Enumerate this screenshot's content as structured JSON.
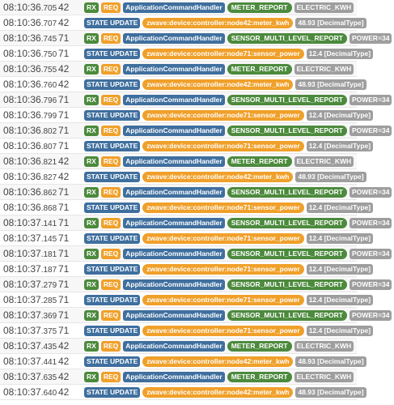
{
  "colors": {
    "blue": "#3f6f9e",
    "green": "#4c8a3d",
    "orange": "#f0a02a",
    "gray": "#9e9e9e"
  },
  "rows": [
    {
      "time": "08:10:36",
      "ms": ".705",
      "node": "42",
      "tags": [
        {
          "text": "RX",
          "color": "green",
          "pill": false
        },
        {
          "text": "REQ",
          "color": "orange",
          "pill": false
        },
        {
          "text": "ApplicationCommandHandler",
          "color": "blue",
          "pill": false
        },
        {
          "text": "METER_REPORT",
          "color": "green",
          "pill": true
        },
        {
          "text": "ELECTRIC_KWH",
          "color": "gray",
          "pill": false
        }
      ]
    },
    {
      "time": "08:10:36",
      "ms": ".707",
      "node": "42",
      "tags": [
        {
          "text": "STATE UPDATE",
          "color": "blue",
          "pill": false
        },
        {
          "text": "zwave:device:controller:node42:meter_kwh",
          "color": "orange",
          "pill": true
        },
        {
          "text": "48.93 [DecimalType]",
          "color": "gray",
          "pill": false
        }
      ]
    },
    {
      "time": "08:10:36",
      "ms": ".745",
      "node": "71",
      "tags": [
        {
          "text": "RX",
          "color": "green",
          "pill": false
        },
        {
          "text": "REQ",
          "color": "orange",
          "pill": false
        },
        {
          "text": "ApplicationCommandHandler",
          "color": "blue",
          "pill": false
        },
        {
          "text": "SENSOR_MULTI_LEVEL_REPORT",
          "color": "green",
          "pill": true
        },
        {
          "text": "POWER=34",
          "color": "gray",
          "pill": false
        }
      ]
    },
    {
      "time": "08:10:36",
      "ms": ".750",
      "node": "71",
      "tags": [
        {
          "text": "STATE UPDATE",
          "color": "blue",
          "pill": false
        },
        {
          "text": "zwave:device:controller:node71:sensor_power",
          "color": "orange",
          "pill": true
        },
        {
          "text": "12.4 [DecimalType]",
          "color": "gray",
          "pill": false
        }
      ]
    },
    {
      "time": "08:10:36",
      "ms": ".755",
      "node": "42",
      "tags": [
        {
          "text": "RX",
          "color": "green",
          "pill": false
        },
        {
          "text": "REQ",
          "color": "orange",
          "pill": false
        },
        {
          "text": "ApplicationCommandHandler",
          "color": "blue",
          "pill": false
        },
        {
          "text": "METER_REPORT",
          "color": "green",
          "pill": true
        },
        {
          "text": "ELECTRIC_KWH",
          "color": "gray",
          "pill": false
        }
      ]
    },
    {
      "time": "08:10:36",
      "ms": ".760",
      "node": "42",
      "tags": [
        {
          "text": "STATE UPDATE",
          "color": "blue",
          "pill": false
        },
        {
          "text": "zwave:device:controller:node42:meter_kwh",
          "color": "orange",
          "pill": true
        },
        {
          "text": "48.93 [DecimalType]",
          "color": "gray",
          "pill": false
        }
      ]
    },
    {
      "time": "08:10:36",
      "ms": ".796",
      "node": "71",
      "tags": [
        {
          "text": "RX",
          "color": "green",
          "pill": false
        },
        {
          "text": "REQ",
          "color": "orange",
          "pill": false
        },
        {
          "text": "ApplicationCommandHandler",
          "color": "blue",
          "pill": false
        },
        {
          "text": "SENSOR_MULTI_LEVEL_REPORT",
          "color": "green",
          "pill": true
        },
        {
          "text": "POWER=34",
          "color": "gray",
          "pill": false
        }
      ]
    },
    {
      "time": "08:10:36",
      "ms": ".799",
      "node": "71",
      "tags": [
        {
          "text": "STATE UPDATE",
          "color": "blue",
          "pill": false
        },
        {
          "text": "zwave:device:controller:node71:sensor_power",
          "color": "orange",
          "pill": true
        },
        {
          "text": "12.4 [DecimalType]",
          "color": "gray",
          "pill": false
        }
      ]
    },
    {
      "time": "08:10:36",
      "ms": ".802",
      "node": "71",
      "tags": [
        {
          "text": "RX",
          "color": "green",
          "pill": false
        },
        {
          "text": "REQ",
          "color": "orange",
          "pill": false
        },
        {
          "text": "ApplicationCommandHandler",
          "color": "blue",
          "pill": false
        },
        {
          "text": "SENSOR_MULTI_LEVEL_REPORT",
          "color": "green",
          "pill": true
        },
        {
          "text": "POWER=34",
          "color": "gray",
          "pill": false
        }
      ]
    },
    {
      "time": "08:10:36",
      "ms": ".807",
      "node": "71",
      "tags": [
        {
          "text": "STATE UPDATE",
          "color": "blue",
          "pill": false
        },
        {
          "text": "zwave:device:controller:node71:sensor_power",
          "color": "orange",
          "pill": true
        },
        {
          "text": "12.4 [DecimalType]",
          "color": "gray",
          "pill": false
        }
      ]
    },
    {
      "time": "08:10:36",
      "ms": ".821",
      "node": "42",
      "tags": [
        {
          "text": "RX",
          "color": "green",
          "pill": false
        },
        {
          "text": "REQ",
          "color": "orange",
          "pill": false
        },
        {
          "text": "ApplicationCommandHandler",
          "color": "blue",
          "pill": false
        },
        {
          "text": "METER_REPORT",
          "color": "green",
          "pill": true
        },
        {
          "text": "ELECTRIC_KWH",
          "color": "gray",
          "pill": false
        }
      ]
    },
    {
      "time": "08:10:36",
      "ms": ".827",
      "node": "42",
      "tags": [
        {
          "text": "STATE UPDATE",
          "color": "blue",
          "pill": false
        },
        {
          "text": "zwave:device:controller:node42:meter_kwh",
          "color": "orange",
          "pill": true
        },
        {
          "text": "48.93 [DecimalType]",
          "color": "gray",
          "pill": false
        }
      ]
    },
    {
      "time": "08:10:36",
      "ms": ".862",
      "node": "71",
      "tags": [
        {
          "text": "RX",
          "color": "green",
          "pill": false
        },
        {
          "text": "REQ",
          "color": "orange",
          "pill": false
        },
        {
          "text": "ApplicationCommandHandler",
          "color": "blue",
          "pill": false
        },
        {
          "text": "SENSOR_MULTI_LEVEL_REPORT",
          "color": "green",
          "pill": true
        },
        {
          "text": "POWER=34",
          "color": "gray",
          "pill": false
        }
      ]
    },
    {
      "time": "08:10:36",
      "ms": ".868",
      "node": "71",
      "tags": [
        {
          "text": "STATE UPDATE",
          "color": "blue",
          "pill": false
        },
        {
          "text": "zwave:device:controller:node71:sensor_power",
          "color": "orange",
          "pill": true
        },
        {
          "text": "12.4 [DecimalType]",
          "color": "gray",
          "pill": false
        }
      ]
    },
    {
      "time": "08:10:37",
      "ms": ".141",
      "node": "71",
      "tags": [
        {
          "text": "RX",
          "color": "green",
          "pill": false
        },
        {
          "text": "REQ",
          "color": "orange",
          "pill": false
        },
        {
          "text": "ApplicationCommandHandler",
          "color": "blue",
          "pill": false
        },
        {
          "text": "SENSOR_MULTI_LEVEL_REPORT",
          "color": "green",
          "pill": true
        },
        {
          "text": "POWER=34",
          "color": "gray",
          "pill": false
        }
      ]
    },
    {
      "time": "08:10:37",
      "ms": ".145",
      "node": "71",
      "tags": [
        {
          "text": "STATE UPDATE",
          "color": "blue",
          "pill": false
        },
        {
          "text": "zwave:device:controller:node71:sensor_power",
          "color": "orange",
          "pill": true
        },
        {
          "text": "12.4 [DecimalType]",
          "color": "gray",
          "pill": false
        }
      ]
    },
    {
      "time": "08:10:37",
      "ms": ".181",
      "node": "71",
      "tags": [
        {
          "text": "RX",
          "color": "green",
          "pill": false
        },
        {
          "text": "REQ",
          "color": "orange",
          "pill": false
        },
        {
          "text": "ApplicationCommandHandler",
          "color": "blue",
          "pill": false
        },
        {
          "text": "SENSOR_MULTI_LEVEL_REPORT",
          "color": "green",
          "pill": true
        },
        {
          "text": "POWER=34",
          "color": "gray",
          "pill": false
        }
      ]
    },
    {
      "time": "08:10:37",
      "ms": ".187",
      "node": "71",
      "tags": [
        {
          "text": "STATE UPDATE",
          "color": "blue",
          "pill": false
        },
        {
          "text": "zwave:device:controller:node71:sensor_power",
          "color": "orange",
          "pill": true
        },
        {
          "text": "12.4 [DecimalType]",
          "color": "gray",
          "pill": false
        }
      ]
    },
    {
      "time": "08:10:37",
      "ms": ".279",
      "node": "71",
      "tags": [
        {
          "text": "RX",
          "color": "green",
          "pill": false
        },
        {
          "text": "REQ",
          "color": "orange",
          "pill": false
        },
        {
          "text": "ApplicationCommandHandler",
          "color": "blue",
          "pill": false
        },
        {
          "text": "SENSOR_MULTI_LEVEL_REPORT",
          "color": "green",
          "pill": true
        },
        {
          "text": "POWER=34",
          "color": "gray",
          "pill": false
        }
      ]
    },
    {
      "time": "08:10:37",
      "ms": ".285",
      "node": "71",
      "tags": [
        {
          "text": "STATE UPDATE",
          "color": "blue",
          "pill": false
        },
        {
          "text": "zwave:device:controller:node71:sensor_power",
          "color": "orange",
          "pill": true
        },
        {
          "text": "12.4 [DecimalType]",
          "color": "gray",
          "pill": false
        }
      ]
    },
    {
      "time": "08:10:37",
      "ms": ".369",
      "node": "71",
      "tags": [
        {
          "text": "RX",
          "color": "green",
          "pill": false
        },
        {
          "text": "REQ",
          "color": "orange",
          "pill": false
        },
        {
          "text": "ApplicationCommandHandler",
          "color": "blue",
          "pill": false
        },
        {
          "text": "SENSOR_MULTI_LEVEL_REPORT",
          "color": "green",
          "pill": true
        },
        {
          "text": "POWER=34",
          "color": "gray",
          "pill": false
        }
      ]
    },
    {
      "time": "08:10:37",
      "ms": ".375",
      "node": "71",
      "tags": [
        {
          "text": "STATE UPDATE",
          "color": "blue",
          "pill": false
        },
        {
          "text": "zwave:device:controller:node71:sensor_power",
          "color": "orange",
          "pill": true
        },
        {
          "text": "12.4 [DecimalType]",
          "color": "gray",
          "pill": false
        }
      ]
    },
    {
      "time": "08:10:37",
      "ms": ".435",
      "node": "42",
      "tags": [
        {
          "text": "RX",
          "color": "green",
          "pill": false
        },
        {
          "text": "REQ",
          "color": "orange",
          "pill": false
        },
        {
          "text": "ApplicationCommandHandler",
          "color": "blue",
          "pill": false
        },
        {
          "text": "METER_REPORT",
          "color": "green",
          "pill": true
        },
        {
          "text": "ELECTRIC_KWH",
          "color": "gray",
          "pill": false
        }
      ]
    },
    {
      "time": "08:10:37",
      "ms": ".441",
      "node": "42",
      "tags": [
        {
          "text": "STATE UPDATE",
          "color": "blue",
          "pill": false
        },
        {
          "text": "zwave:device:controller:node42:meter_kwh",
          "color": "orange",
          "pill": true
        },
        {
          "text": "48.93 [DecimalType]",
          "color": "gray",
          "pill": false
        }
      ]
    },
    {
      "time": "08:10:37",
      "ms": ".635",
      "node": "42",
      "tags": [
        {
          "text": "RX",
          "color": "green",
          "pill": false
        },
        {
          "text": "REQ",
          "color": "orange",
          "pill": false
        },
        {
          "text": "ApplicationCommandHandler",
          "color": "blue",
          "pill": false
        },
        {
          "text": "METER_REPORT",
          "color": "green",
          "pill": true
        },
        {
          "text": "ELECTRIC_KWH",
          "color": "gray",
          "pill": false
        }
      ]
    },
    {
      "time": "08:10:37",
      "ms": ".640",
      "node": "42",
      "tags": [
        {
          "text": "STATE UPDATE",
          "color": "blue",
          "pill": false
        },
        {
          "text": "zwave:device:controller:node42:meter_kwh",
          "color": "orange",
          "pill": true
        },
        {
          "text": "48.93 [DecimalType]",
          "color": "gray",
          "pill": false
        }
      ]
    }
  ]
}
